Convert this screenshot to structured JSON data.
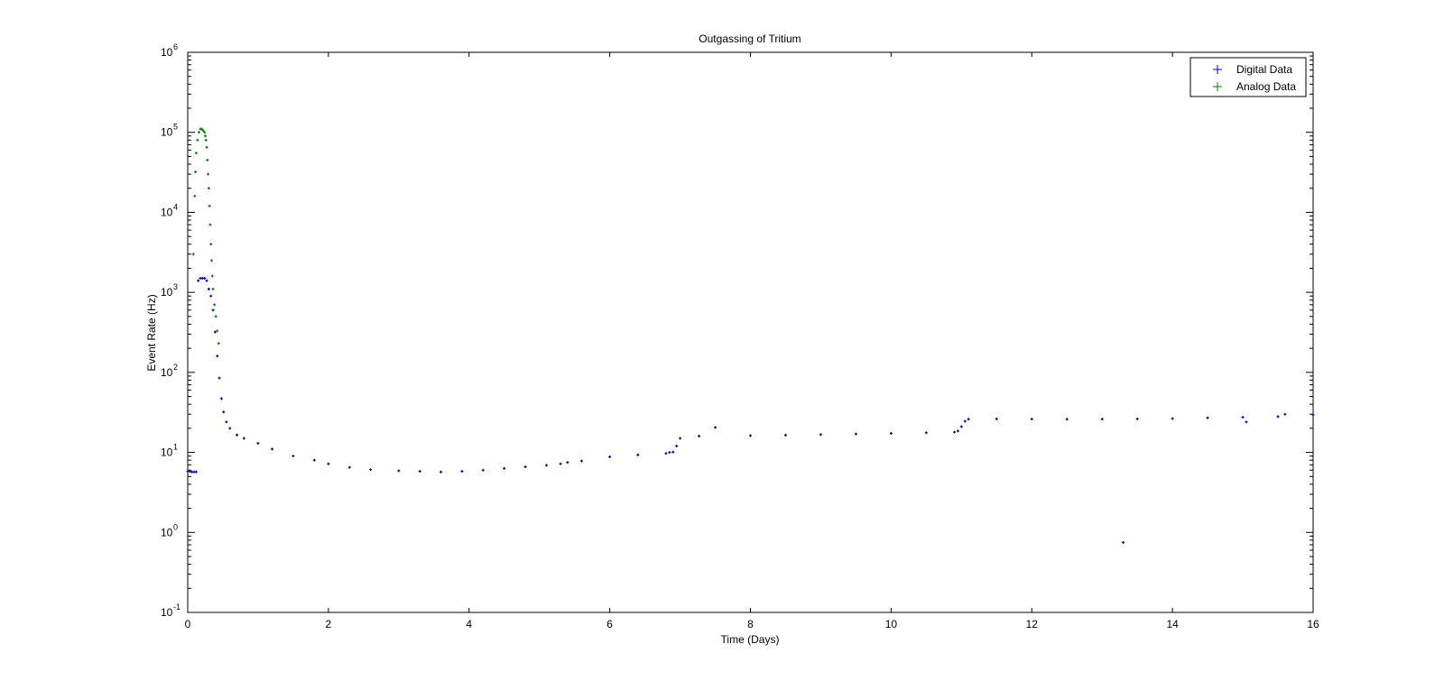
{
  "chart_data": {
    "type": "scatter",
    "title": "Outgassing of Tritium",
    "xlabel": "Time (Days)",
    "ylabel": "Event Rate (Hz)",
    "xlim": [
      0,
      16
    ],
    "ylim": [
      0.1,
      1000000
    ],
    "yscale": "log",
    "grid": false,
    "legend_position": "top-right",
    "x_ticks": [
      {
        "value": 0,
        "label": "0"
      },
      {
        "value": 2,
        "label": "2"
      },
      {
        "value": 4,
        "label": "4"
      },
      {
        "value": 6,
        "label": "6"
      },
      {
        "value": 8,
        "label": "8"
      },
      {
        "value": 10,
        "label": "10"
      },
      {
        "value": 12,
        "label": "12"
      },
      {
        "value": 14,
        "label": "14"
      },
      {
        "value": 16,
        "label": "16"
      }
    ],
    "y_ticks": [
      {
        "value": 0.1,
        "base": "10",
        "exp": "-1"
      },
      {
        "value": 1,
        "base": "10",
        "exp": "0"
      },
      {
        "value": 10,
        "base": "10",
        "exp": "1"
      },
      {
        "value": 100,
        "base": "10",
        "exp": "2"
      },
      {
        "value": 1000,
        "base": "10",
        "exp": "3"
      },
      {
        "value": 10000,
        "base": "10",
        "exp": "4"
      },
      {
        "value": 100000,
        "base": "10",
        "exp": "5"
      },
      {
        "value": 1000000,
        "base": "10",
        "exp": "6"
      }
    ],
    "series": [
      {
        "name": "Digital Data",
        "color": "#0000cc",
        "marker": "+",
        "x": [
          0.0,
          0.03,
          0.06,
          0.09,
          0.12,
          0.15,
          0.18,
          0.21,
          0.24,
          0.27,
          0.3,
          0.33,
          0.36,
          0.39,
          0.42,
          0.45,
          0.48,
          0.51,
          0.55,
          0.6,
          0.7,
          0.8,
          1.0,
          1.2,
          1.5,
          1.8,
          2.0,
          2.3,
          2.6,
          3.0,
          3.3,
          3.6,
          3.9,
          4.2,
          4.5,
          4.8,
          5.1,
          5.3,
          5.4,
          5.6,
          6.0,
          6.4,
          6.8,
          6.85,
          6.9,
          6.95,
          7.0,
          7.27,
          7.5,
          8.0,
          8.5,
          9.0,
          9.5,
          10.0,
          10.5,
          10.9,
          10.95,
          11.0,
          11.05,
          11.1,
          11.5,
          12.0,
          12.5,
          13.0,
          13.3,
          13.5,
          14.0,
          14.5,
          15.0,
          15.05,
          15.5,
          15.6,
          16.0
        ],
        "y": [
          5.8,
          5.8,
          5.7,
          5.7,
          5.7,
          1400,
          1500,
          1500,
          1500,
          1400,
          1100,
          900,
          600,
          320,
          160,
          85,
          47,
          32,
          24,
          20,
          16.5,
          15.0,
          13.0,
          11.0,
          9.0,
          8.0,
          7.2,
          6.5,
          6.1,
          5.9,
          5.8,
          5.7,
          5.8,
          6.0,
          6.3,
          6.6,
          6.9,
          7.2,
          7.5,
          7.8,
          8.8,
          9.3,
          9.7,
          10.0,
          10.1,
          12.0,
          15.0,
          16.0,
          20.5,
          16.2,
          16.4,
          16.7,
          17.0,
          17.3,
          17.6,
          17.9,
          18.5,
          21.0,
          24.5,
          26.0,
          26.2,
          26.1,
          26.0,
          26.1,
          0.75,
          26.2,
          26.5,
          27.0,
          27.5,
          24.0,
          28.0,
          30.0,
          29.5
        ]
      },
      {
        "name": "Analog Data",
        "color": "#008000",
        "marker": "+",
        "x": [
          0.08,
          0.1,
          0.11,
          0.12,
          0.14,
          0.16,
          0.18,
          0.2,
          0.22,
          0.24,
          0.25,
          0.26,
          0.27,
          0.28,
          0.29,
          0.3,
          0.31,
          0.32,
          0.33,
          0.34,
          0.35,
          0.36,
          0.38,
          0.4,
          0.42,
          0.44
        ],
        "y": [
          3000,
          16000,
          32000,
          55000,
          80000,
          100000,
          110000,
          110000,
          105000,
          100000,
          90000,
          80000,
          65000,
          45000,
          30000,
          20000,
          12000,
          7000,
          4000,
          2500,
          1600,
          1100,
          700,
          500,
          330,
          230
        ]
      }
    ]
  }
}
